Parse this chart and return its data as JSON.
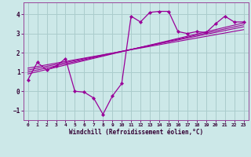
{
  "background_color": "#cce8e8",
  "grid_color": "#aacccc",
  "line_color": "#990099",
  "xlabel": "Windchill (Refroidissement éolien,°C)",
  "xlim": [
    -0.5,
    23.5
  ],
  "ylim": [
    -1.5,
    4.6
  ],
  "xticks": [
    0,
    1,
    2,
    3,
    4,
    5,
    6,
    7,
    8,
    9,
    10,
    11,
    12,
    13,
    14,
    15,
    16,
    17,
    18,
    19,
    20,
    21,
    22,
    23
  ],
  "yticks": [
    -1,
    0,
    1,
    2,
    3,
    4
  ],
  "main_line_x": [
    0,
    1,
    2,
    3,
    4,
    5,
    6,
    7,
    8,
    9,
    10,
    11,
    12,
    13,
    14,
    15,
    16,
    17,
    18,
    19,
    20,
    21,
    22,
    23
  ],
  "main_line_y": [
    0.6,
    1.5,
    1.1,
    1.3,
    1.7,
    0.0,
    -0.05,
    -0.35,
    -1.2,
    -0.25,
    0.4,
    3.9,
    3.6,
    4.1,
    4.15,
    4.15,
    3.1,
    3.0,
    3.1,
    3.05,
    3.5,
    3.9,
    3.6,
    3.6
  ],
  "reg_lines": [
    {
      "x": [
        0,
        23
      ],
      "y": [
        0.9,
        3.55
      ]
    },
    {
      "x": [
        0,
        23
      ],
      "y": [
        1.0,
        3.45
      ]
    },
    {
      "x": [
        0,
        23
      ],
      "y": [
        1.1,
        3.35
      ]
    },
    {
      "x": [
        0,
        23
      ],
      "y": [
        1.2,
        3.2
      ]
    }
  ]
}
